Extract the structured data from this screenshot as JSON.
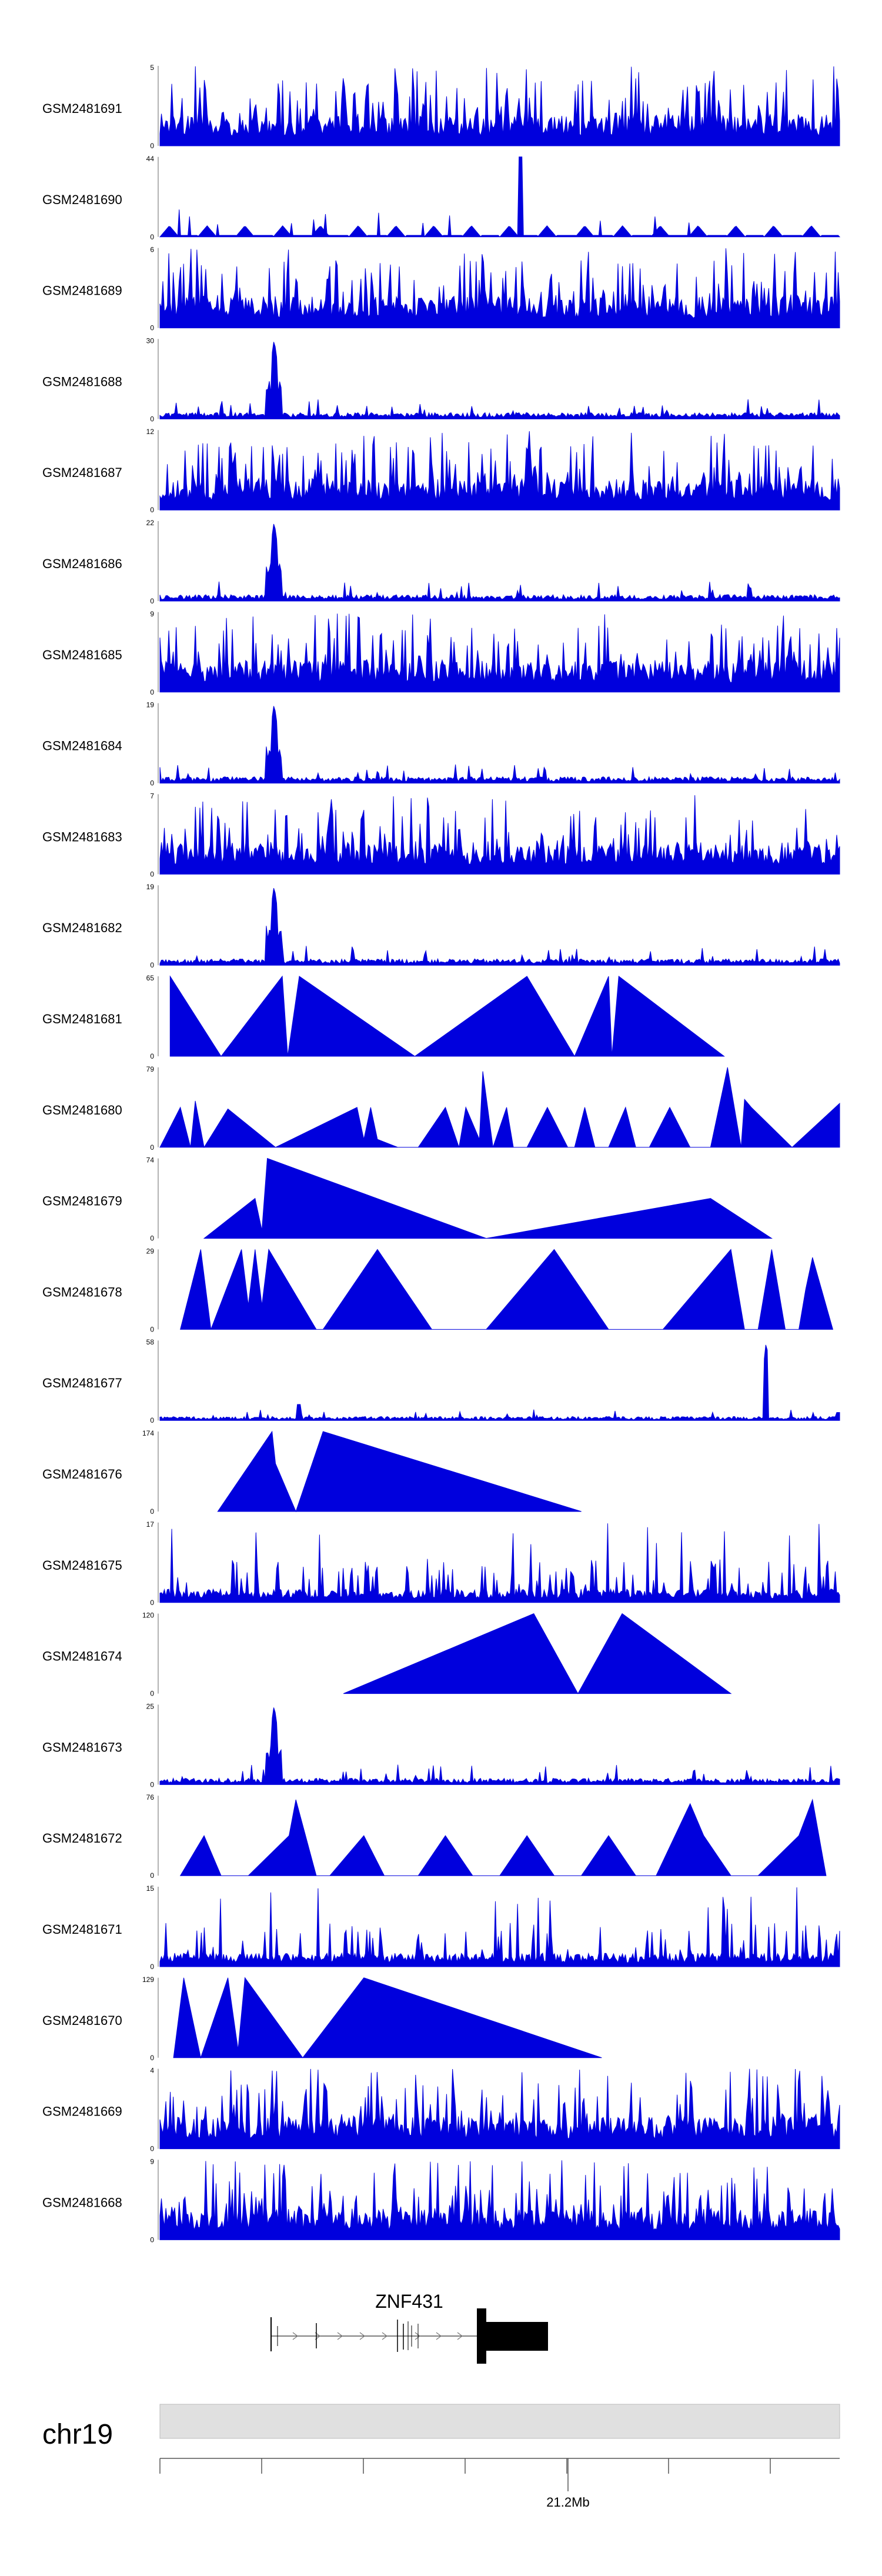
{
  "chart_data": {
    "type": "area",
    "title": "",
    "colors": {
      "signal": "#0000dd",
      "ideogram": "#e0e0e0",
      "gene": "#000000",
      "axis": "#555555"
    },
    "tracks": [
      {
        "name": "GSM2481691",
        "ymax": 5,
        "ymin": 0,
        "pattern": "dense",
        "seed": 11
      },
      {
        "name": "GSM2481690",
        "ymax": 44,
        "ymin": 0,
        "pattern": "sparse",
        "seed": 12
      },
      {
        "name": "GSM2481689",
        "ymax": 6,
        "ymin": 0,
        "pattern": "dense",
        "seed": 13
      },
      {
        "name": "GSM2481688",
        "ymax": 30,
        "ymin": 0,
        "pattern": "peak",
        "seed": 14
      },
      {
        "name": "GSM2481687",
        "ymax": 12,
        "ymin": 0,
        "pattern": "dense",
        "seed": 15
      },
      {
        "name": "GSM2481686",
        "ymax": 22,
        "ymin": 0,
        "pattern": "peak",
        "seed": 16
      },
      {
        "name": "GSM2481685",
        "ymax": 9,
        "ymin": 0,
        "pattern": "dense",
        "seed": 17
      },
      {
        "name": "GSM2481684",
        "ymax": 19,
        "ymin": 0,
        "pattern": "peak",
        "seed": 18
      },
      {
        "name": "GSM2481683",
        "ymax": 7,
        "ymin": 0,
        "pattern": "dense",
        "seed": 19
      },
      {
        "name": "GSM2481682",
        "ymax": 19,
        "ymin": 0,
        "pattern": "peak",
        "seed": 20
      },
      {
        "name": "GSM2481681",
        "ymax": 65,
        "ymin": 0,
        "pattern": "triangles",
        "points": [
          [
            0.015,
            1
          ],
          [
            0.09,
            0
          ],
          [
            0.18,
            1
          ],
          [
            0.188,
            0
          ],
          [
            0.205,
            1
          ],
          [
            0.375,
            0
          ],
          [
            0.54,
            1
          ],
          [
            0.61,
            0
          ],
          [
            0.66,
            1
          ],
          [
            0.665,
            0
          ],
          [
            0.675,
            1
          ],
          [
            0.83,
            0
          ]
        ]
      },
      {
        "name": "GSM2481680",
        "ymax": 79,
        "ymin": 0,
        "pattern": "triangles",
        "points": [
          [
            0,
            0
          ],
          [
            0.03,
            0.5
          ],
          [
            0.045,
            0
          ],
          [
            0.052,
            0.58
          ],
          [
            0.065,
            0
          ],
          [
            0.1,
            0.48
          ],
          [
            0.17,
            0
          ],
          [
            0.29,
            0.5
          ],
          [
            0.3,
            0.1
          ],
          [
            0.31,
            0.5
          ],
          [
            0.32,
            0.1
          ],
          [
            0.35,
            0
          ],
          [
            0.38,
            0
          ],
          [
            0.42,
            0.5
          ],
          [
            0.44,
            0
          ],
          [
            0.45,
            0.5
          ],
          [
            0.47,
            0.1
          ],
          [
            0.475,
            0.95
          ],
          [
            0.49,
            0
          ],
          [
            0.51,
            0.5
          ],
          [
            0.52,
            0
          ],
          [
            0.54,
            0
          ],
          [
            0.57,
            0.5
          ],
          [
            0.6,
            0
          ],
          [
            0.61,
            0
          ],
          [
            0.625,
            0.5
          ],
          [
            0.64,
            0
          ],
          [
            0.66,
            0
          ],
          [
            0.685,
            0.5
          ],
          [
            0.7,
            0
          ],
          [
            0.72,
            0
          ],
          [
            0.75,
            0.5
          ],
          [
            0.78,
            0
          ],
          [
            0.81,
            0
          ],
          [
            0.835,
            1
          ],
          [
            0.855,
            0
          ],
          [
            0.86,
            0.6
          ],
          [
            0.87,
            0.5
          ],
          [
            0.93,
            0
          ],
          [
            1,
            0.55
          ],
          [
            1,
            0
          ]
        ]
      },
      {
        "name": "GSM2481679",
        "ymax": 74,
        "ymin": 0,
        "pattern": "triangles",
        "points": [
          [
            0.065,
            0
          ],
          [
            0.14,
            0.5
          ],
          [
            0.15,
            0.1
          ],
          [
            0.158,
            1
          ],
          [
            0.48,
            0
          ],
          [
            0.81,
            0.5
          ],
          [
            0.9,
            0
          ]
        ]
      },
      {
        "name": "GSM2481678",
        "ymax": 29,
        "ymin": 0,
        "pattern": "triangles",
        "points": [
          [
            0.03,
            0
          ],
          [
            0.06,
            1
          ],
          [
            0.075,
            0
          ],
          [
            0.12,
            1
          ],
          [
            0.13,
            0.3
          ],
          [
            0.14,
            1
          ],
          [
            0.15,
            0.3
          ],
          [
            0.16,
            1
          ],
          [
            0.23,
            0
          ],
          [
            0.24,
            0
          ],
          [
            0.32,
            1
          ],
          [
            0.4,
            0
          ],
          [
            0.48,
            0
          ],
          [
            0.58,
            1
          ],
          [
            0.66,
            0
          ],
          [
            0.74,
            0
          ],
          [
            0.84,
            1
          ],
          [
            0.86,
            0
          ],
          [
            0.88,
            0
          ],
          [
            0.9,
            1
          ],
          [
            0.92,
            0
          ],
          [
            0.94,
            0
          ],
          [
            0.95,
            0.5
          ],
          [
            0.96,
            0.9
          ],
          [
            0.99,
            0
          ]
        ]
      },
      {
        "name": "GSM2481677",
        "ymax": 58,
        "ymin": 0,
        "pattern": "bigpeak",
        "seed": 21
      },
      {
        "name": "GSM2481676",
        "ymax": 174,
        "ymin": 0,
        "pattern": "triangles",
        "points": [
          [
            0.085,
            0
          ],
          [
            0.165,
            1
          ],
          [
            0.17,
            0.6
          ],
          [
            0.2,
            0
          ],
          [
            0.24,
            1
          ],
          [
            0.62,
            0
          ]
        ]
      },
      {
        "name": "GSM2481675",
        "ymax": 17,
        "ymin": 0,
        "pattern": "spiky",
        "seed": 22
      },
      {
        "name": "GSM2481674",
        "ymax": 120,
        "ymin": 0,
        "pattern": "triangles",
        "points": [
          [
            0.27,
            0
          ],
          [
            0.55,
            1
          ],
          [
            0.615,
            0
          ],
          [
            0.68,
            1
          ],
          [
            0.84,
            0
          ]
        ]
      },
      {
        "name": "GSM2481673",
        "ymax": 25,
        "ymin": 0,
        "pattern": "peak",
        "seed": 23
      },
      {
        "name": "GSM2481672",
        "ymax": 76,
        "ymin": 0,
        "pattern": "triangles",
        "points": [
          [
            0.03,
            0
          ],
          [
            0.065,
            0.5
          ],
          [
            0.09,
            0
          ],
          [
            0.13,
            0
          ],
          [
            0.19,
            0.5
          ],
          [
            0.2,
            0.95
          ],
          [
            0.23,
            0
          ],
          [
            0.25,
            0
          ],
          [
            0.3,
            0.5
          ],
          [
            0.33,
            0
          ],
          [
            0.38,
            0
          ],
          [
            0.42,
            0.5
          ],
          [
            0.46,
            0
          ],
          [
            0.5,
            0
          ],
          [
            0.54,
            0.5
          ],
          [
            0.58,
            0
          ],
          [
            0.62,
            0
          ],
          [
            0.66,
            0.5
          ],
          [
            0.7,
            0
          ],
          [
            0.73,
            0
          ],
          [
            0.78,
            0.9
          ],
          [
            0.8,
            0.5
          ],
          [
            0.84,
            0
          ],
          [
            0.88,
            0
          ],
          [
            0.94,
            0.5
          ],
          [
            0.96,
            0.95
          ],
          [
            0.98,
            0
          ]
        ]
      },
      {
        "name": "GSM2481671",
        "ymax": 15,
        "ymin": 0,
        "pattern": "spiky",
        "seed": 24
      },
      {
        "name": "GSM2481670",
        "ymax": 129,
        "ymin": 0,
        "pattern": "triangles",
        "points": [
          [
            0.02,
            0
          ],
          [
            0.035,
            1
          ],
          [
            0.06,
            0
          ],
          [
            0.1,
            1
          ],
          [
            0.115,
            0.1
          ],
          [
            0.125,
            1
          ],
          [
            0.21,
            0
          ],
          [
            0.3,
            1
          ],
          [
            0.65,
            0
          ]
        ]
      },
      {
        "name": "GSM2481669",
        "ymax": 4,
        "ymin": 0,
        "pattern": "dense",
        "seed": 25
      },
      {
        "name": "GSM2481668",
        "ymax": 9,
        "ymin": 0,
        "pattern": "dense",
        "seed": 26
      }
    ],
    "gene": {
      "name": "ZNF431"
    },
    "chromosome": "chr19",
    "axis": {
      "tick_label": "21.2Mb"
    }
  }
}
